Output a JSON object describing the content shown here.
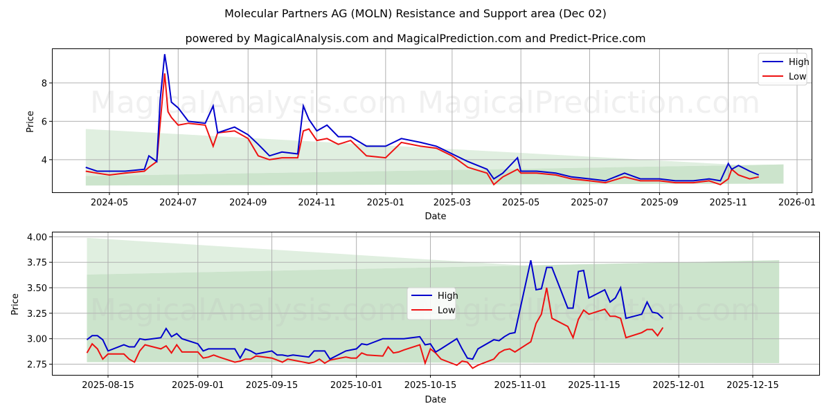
{
  "header": {
    "title": "Molecular Partners AG (MOLN) Resistance and Support area (Dec 02)",
    "subtitle": "powered by MagicalAnalysis.com and MagicalPrediction.com and Predict-Price.com"
  },
  "watermarks": [
    "MagicalAnalysis.com",
    "MagicalPrediction.com"
  ],
  "colors": {
    "high": "#0000cc",
    "low": "#ee1111",
    "band_light": "#e0efe0",
    "band_dark": "#cce4cc",
    "grid": "#b0b0b0"
  },
  "chart_data": [
    {
      "type": "line",
      "title": "Full history",
      "xlabel": "Date",
      "ylabel": "Price",
      "ylim": [
        2.3,
        9.8
      ],
      "grid": true,
      "legend": {
        "position": "upper right",
        "entries": [
          "High",
          "Low"
        ]
      },
      "x_ticks": [
        "2024-05",
        "2024-07",
        "2024-09",
        "2024-11",
        "2025-01",
        "2025-03",
        "2025-05",
        "2025-07",
        "2025-09",
        "2025-11",
        "2026-01"
      ],
      "y_ticks": [
        "4",
        "6",
        "8"
      ],
      "x": [
        "2024-04-10",
        "2024-04-20",
        "2024-05-01",
        "2024-05-15",
        "2024-06-01",
        "2024-06-05",
        "2024-06-12",
        "2024-06-15",
        "2024-06-19",
        "2024-06-22",
        "2024-06-25",
        "2024-07-01",
        "2024-07-10",
        "2024-07-25",
        "2024-08-01",
        "2024-08-05",
        "2024-08-20",
        "2024-09-01",
        "2024-09-10",
        "2024-09-20",
        "2024-10-01",
        "2024-10-15",
        "2024-10-20",
        "2024-10-25",
        "2024-11-01",
        "2024-11-10",
        "2024-11-20",
        "2024-12-01",
        "2024-12-15",
        "2025-01-01",
        "2025-01-15",
        "2025-02-01",
        "2025-02-15",
        "2025-03-01",
        "2025-03-15",
        "2025-04-01",
        "2025-04-07",
        "2025-04-15",
        "2025-04-28",
        "2025-05-01",
        "2025-05-15",
        "2025-06-01",
        "2025-06-15",
        "2025-07-01",
        "2025-07-15",
        "2025-08-01",
        "2025-08-15",
        "2025-09-01",
        "2025-09-15",
        "2025-10-01",
        "2025-10-15",
        "2025-10-25",
        "2025-11-01",
        "2025-11-04",
        "2025-11-10",
        "2025-11-20",
        "2025-11-28"
      ],
      "series": [
        {
          "name": "High",
          "values": [
            3.6,
            3.4,
            3.4,
            3.4,
            3.5,
            4.2,
            3.9,
            7.1,
            9.5,
            8.4,
            7.0,
            6.7,
            6.0,
            5.9,
            6.8,
            5.4,
            5.7,
            5.3,
            4.8,
            4.2,
            4.4,
            4.3,
            6.8,
            6.1,
            5.5,
            5.8,
            5.2,
            5.2,
            4.7,
            4.7,
            5.1,
            4.9,
            4.7,
            4.3,
            3.9,
            3.5,
            3.0,
            3.3,
            4.1,
            3.4,
            3.4,
            3.3,
            3.1,
            3.0,
            2.9,
            3.3,
            3.0,
            3.0,
            2.9,
            2.9,
            3.0,
            2.9,
            3.8,
            3.5,
            3.7,
            3.4,
            3.2
          ]
        },
        {
          "name": "Low",
          "values": [
            3.4,
            3.3,
            3.2,
            3.3,
            3.4,
            3.6,
            3.9,
            5.9,
            8.5,
            6.5,
            6.2,
            5.8,
            5.9,
            5.8,
            4.7,
            5.4,
            5.5,
            5.1,
            4.2,
            4.0,
            4.1,
            4.1,
            5.5,
            5.6,
            5.0,
            5.1,
            4.8,
            5.0,
            4.2,
            4.1,
            4.9,
            4.7,
            4.6,
            4.2,
            3.6,
            3.3,
            2.7,
            3.1,
            3.5,
            3.3,
            3.3,
            3.2,
            3.0,
            2.9,
            2.8,
            3.1,
            2.9,
            2.9,
            2.8,
            2.8,
            2.9,
            2.7,
            3.0,
            3.5,
            3.2,
            3.0,
            3.1
          ]
        }
      ],
      "bands": [
        {
          "name": "resistance",
          "x_range": [
            "2024-04-10",
            "2025-12-20"
          ],
          "top_start": 5.6,
          "top_end": 3.6,
          "bottom_start": 3.15,
          "bottom_end": 3.75
        },
        {
          "name": "support",
          "x_range": [
            "2024-04-10",
            "2025-12-20"
          ],
          "top_start": 3.15,
          "top_end": 3.75,
          "bottom_start": 2.65,
          "bottom_end": 2.75
        }
      ]
    },
    {
      "type": "line",
      "title": "Recent detail",
      "xlabel": "Date",
      "ylabel": "Price",
      "ylim": [
        2.645,
        4.05
      ],
      "grid": true,
      "legend": {
        "position": "center",
        "entries": [
          "High",
          "Low"
        ]
      },
      "x_ticks": [
        "2025-08-15",
        "2025-09-01",
        "2025-09-15",
        "2025-10-01",
        "2025-10-15",
        "2025-11-01",
        "2025-11-15",
        "2025-12-01",
        "2025-12-15"
      ],
      "y_ticks": [
        "2.75",
        "3.00",
        "3.25",
        "3.50",
        "3.75",
        "4.00"
      ],
      "x": [
        "2025-08-11",
        "2025-08-12",
        "2025-08-13",
        "2025-08-14",
        "2025-08-15",
        "2025-08-18",
        "2025-08-19",
        "2025-08-20",
        "2025-08-21",
        "2025-08-22",
        "2025-08-25",
        "2025-08-26",
        "2025-08-27",
        "2025-08-28",
        "2025-08-29",
        "2025-09-01",
        "2025-09-02",
        "2025-09-03",
        "2025-09-04",
        "2025-09-05",
        "2025-09-08",
        "2025-09-09",
        "2025-09-10",
        "2025-09-11",
        "2025-09-12",
        "2025-09-15",
        "2025-09-16",
        "2025-09-17",
        "2025-09-18",
        "2025-09-19",
        "2025-09-22",
        "2025-09-23",
        "2025-09-24",
        "2025-09-25",
        "2025-09-26",
        "2025-09-29",
        "2025-09-30",
        "2025-10-01",
        "2025-10-02",
        "2025-10-03",
        "2025-10-06",
        "2025-10-07",
        "2025-10-08",
        "2025-10-09",
        "2025-10-10",
        "2025-10-13",
        "2025-10-14",
        "2025-10-15",
        "2025-10-16",
        "2025-10-17",
        "2025-10-20",
        "2025-10-21",
        "2025-10-22",
        "2025-10-23",
        "2025-10-24",
        "2025-10-27",
        "2025-10-28",
        "2025-10-29",
        "2025-10-30",
        "2025-10-31",
        "2025-11-03",
        "2025-11-04",
        "2025-11-05",
        "2025-11-06",
        "2025-11-07",
        "2025-11-10",
        "2025-11-11",
        "2025-11-12",
        "2025-11-13",
        "2025-11-14",
        "2025-11-17",
        "2025-11-18",
        "2025-11-19",
        "2025-11-20",
        "2025-11-21",
        "2025-11-24",
        "2025-11-25",
        "2025-11-26",
        "2025-11-27",
        "2025-11-28"
      ],
      "series": [
        {
          "name": "High",
          "values": [
            2.99,
            3.03,
            3.03,
            2.99,
            2.88,
            2.94,
            2.92,
            2.92,
            3.0,
            2.99,
            3.01,
            3.1,
            3.02,
            3.05,
            3.0,
            2.95,
            2.88,
            2.9,
            2.9,
            2.9,
            2.9,
            2.81,
            2.9,
            2.88,
            2.85,
            2.88,
            2.84,
            2.84,
            2.83,
            2.84,
            2.82,
            2.88,
            2.88,
            2.88,
            2.8,
            2.88,
            2.89,
            2.9,
            2.95,
            2.94,
            3.0,
            3.0,
            3.0,
            3.0,
            3.0,
            3.02,
            2.94,
            2.95,
            2.87,
            2.9,
            3.0,
            2.9,
            2.81,
            2.8,
            2.9,
            2.99,
            2.98,
            3.02,
            3.05,
            3.06,
            3.77,
            3.48,
            3.49,
            3.7,
            3.7,
            3.3,
            3.3,
            3.66,
            3.67,
            3.4,
            3.48,
            3.36,
            3.4,
            3.5,
            3.2,
            3.24,
            3.36,
            3.26,
            3.25,
            3.2
          ]
        },
        {
          "name": "Low",
          "values": [
            2.86,
            2.95,
            2.9,
            2.8,
            2.85,
            2.85,
            2.8,
            2.77,
            2.88,
            2.94,
            2.9,
            2.93,
            2.86,
            2.94,
            2.87,
            2.87,
            2.81,
            2.82,
            2.84,
            2.82,
            2.77,
            2.78,
            2.8,
            2.8,
            2.83,
            2.81,
            2.79,
            2.77,
            2.8,
            2.79,
            2.76,
            2.77,
            2.8,
            2.76,
            2.79,
            2.82,
            2.81,
            2.81,
            2.86,
            2.84,
            2.83,
            2.92,
            2.86,
            2.87,
            2.89,
            2.94,
            2.76,
            2.9,
            2.86,
            2.8,
            2.74,
            2.78,
            2.77,
            2.71,
            2.74,
            2.8,
            2.86,
            2.89,
            2.9,
            2.87,
            2.97,
            3.15,
            3.24,
            3.5,
            3.2,
            3.12,
            3.01,
            3.19,
            3.28,
            3.24,
            3.29,
            3.22,
            3.22,
            3.2,
            3.01,
            3.06,
            3.09,
            3.09,
            3.03,
            3.11
          ]
        }
      ],
      "bands": [
        {
          "name": "resistance",
          "x_range": [
            "2025-08-11",
            "2025-12-20"
          ],
          "top_start": 3.99,
          "top_end": 3.56,
          "bottom_start": 3.63,
          "bottom_end": 3.77
        },
        {
          "name": "support",
          "x_range": [
            "2025-08-11",
            "2025-12-20"
          ],
          "top_start": 3.63,
          "top_end": 3.77,
          "bottom_start": 2.77,
          "bottom_end": 2.76
        }
      ]
    }
  ]
}
